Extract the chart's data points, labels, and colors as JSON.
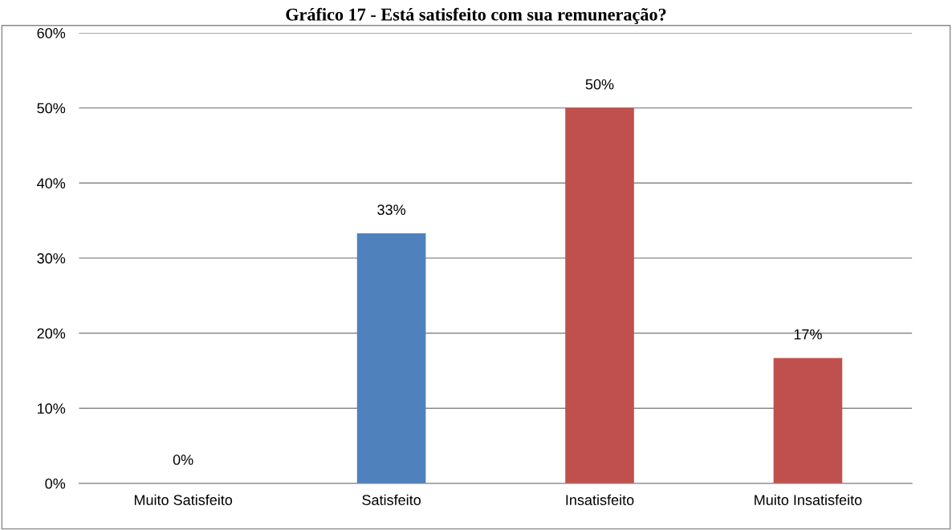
{
  "chart_data": {
    "type": "bar",
    "title": "Gráfico 17 - Está satisfeito com sua remuneração?",
    "categories": [
      "Muito Satisfeito",
      "Satisfeito",
      "Insatisfeito",
      "Muito Insatisfeito"
    ],
    "values": [
      0,
      33.3,
      50,
      16.7
    ],
    "colors": [
      "#4f81bd",
      "#4f81bd",
      "#c0504d",
      "#c0504d"
    ],
    "value_labels": [
      "0%",
      "33%",
      "50%",
      "17%"
    ],
    "ylim": [
      0,
      60
    ],
    "yticks": [
      {
        "value": 0,
        "label": "0%"
      },
      {
        "value": 10,
        "label": "10%"
      },
      {
        "value": 20,
        "label": "20%"
      },
      {
        "value": 30,
        "label": "30%"
      },
      {
        "value": 40,
        "label": "40%"
      },
      {
        "value": 50,
        "label": "50%"
      },
      {
        "value": 60,
        "label": "60%"
      }
    ],
    "grid": "y"
  }
}
